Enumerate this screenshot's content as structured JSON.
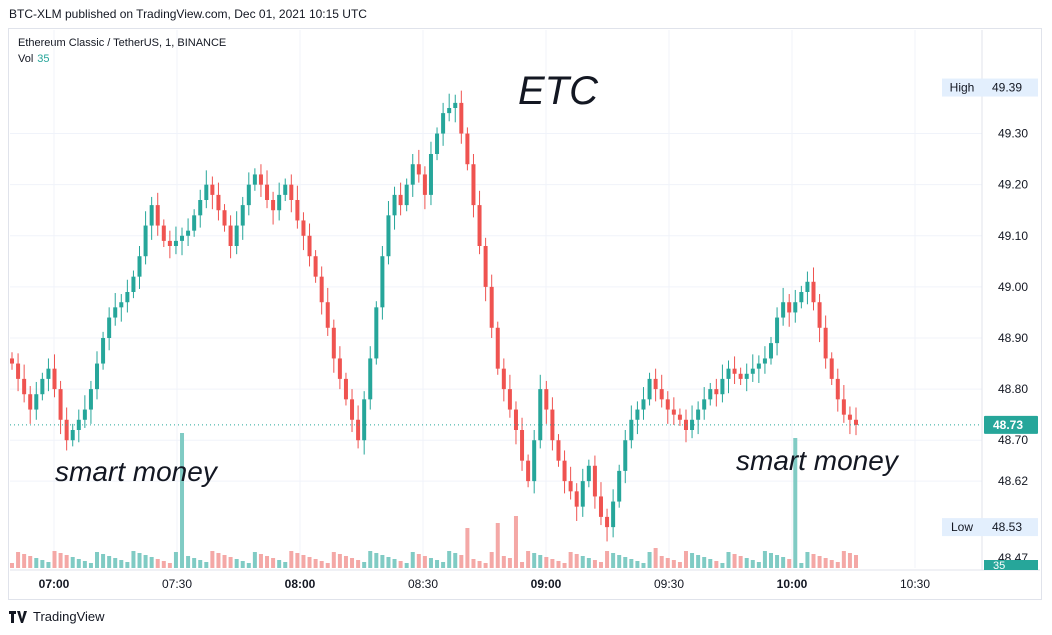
{
  "publish_line": "BTC-XLM published on TradingView.com, Dec 01, 2021 10:15 UTC",
  "symbol_line": "Ethereum Classic / TetherUS, 1, BINANCE",
  "vol_label": "Vol",
  "vol_value": "35",
  "footer_brand": "TradingView",
  "colors": {
    "up": "#26a69a",
    "down": "#ef5350",
    "up_vol": "#80cbc4",
    "down_vol": "#f4a8a6",
    "grid": "#f0f3fa",
    "badge": "#26a69a",
    "hl_badge": "#e3effd"
  },
  "chart_data": {
    "type": "candlestick",
    "title": "ETC",
    "annotations": [
      "smart money",
      "smart money"
    ],
    "y_ticks": [
      "49.30",
      "49.20",
      "49.10",
      "49.00",
      "48.90",
      "48.80",
      "48.70",
      "48.62"
    ],
    "ylim": [
      48.45,
      49.44
    ],
    "x_ticks": [
      "07:00",
      "07:30",
      "08:00",
      "08:30",
      "09:00",
      "09:30",
      "10:00",
      "10:30"
    ],
    "x_ticks_bold": [
      "07:00",
      "08:00",
      "09:00",
      "10:00"
    ],
    "high_label": "High",
    "high_value": "49.39",
    "low_label": "Low",
    "low_value": "48.53",
    "last_price": "48.73",
    "vol_badge": "35",
    "bottom_price": "48.47",
    "closes": [
      48.85,
      48.82,
      48.79,
      48.76,
      48.79,
      48.82,
      48.84,
      48.8,
      48.74,
      48.7,
      48.72,
      48.74,
      48.76,
      48.8,
      48.85,
      48.9,
      48.94,
      48.96,
      48.97,
      48.99,
      49.02,
      49.06,
      49.12,
      49.16,
      49.12,
      49.09,
      49.08,
      49.09,
      49.1,
      49.11,
      49.14,
      49.17,
      49.2,
      49.18,
      49.15,
      49.12,
      49.08,
      49.12,
      49.16,
      49.2,
      49.22,
      49.2,
      49.17,
      49.15,
      49.18,
      49.2,
      49.17,
      49.13,
      49.1,
      49.06,
      49.02,
      48.97,
      48.92,
      48.86,
      48.82,
      48.78,
      48.74,
      48.7,
      48.78,
      48.86,
      48.96,
      49.06,
      49.14,
      49.18,
      49.16,
      49.2,
      49.24,
      49.22,
      49.18,
      49.26,
      49.3,
      49.34,
      49.35,
      49.36,
      49.3,
      49.24,
      49.16,
      49.08,
      49.0,
      48.92,
      48.84,
      48.8,
      48.76,
      48.72,
      48.66,
      48.62,
      48.7,
      48.8,
      48.76,
      48.7,
      48.66,
      48.62,
      48.6,
      48.57,
      48.62,
      48.65,
      48.59,
      48.55,
      48.53,
      48.58,
      48.64,
      48.7,
      48.74,
      48.76,
      48.78,
      48.82,
      48.8,
      48.78,
      48.76,
      48.75,
      48.74,
      48.72,
      48.74,
      48.76,
      48.78,
      48.8,
      48.79,
      48.82,
      48.84,
      48.83,
      48.82,
      48.83,
      48.84,
      48.85,
      48.86,
      48.89,
      48.94,
      48.97,
      48.95,
      48.97,
      48.99,
      49.01,
      48.97,
      48.92,
      48.86,
      48.82,
      48.78,
      48.75,
      48.74,
      48.73
    ]
  }
}
